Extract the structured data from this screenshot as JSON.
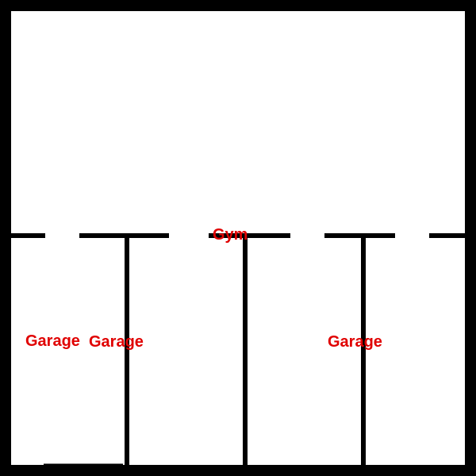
{
  "colors": {
    "walls": "#000000",
    "label": "#e00000",
    "background": "#ffffff"
  },
  "rooms": [
    {
      "id": "gym",
      "label": "Gym"
    },
    {
      "id": "garage-1",
      "label": "Garage"
    },
    {
      "id": "garage-2",
      "label": "Garage"
    },
    {
      "id": "garage-3",
      "label": "Garage"
    }
  ]
}
